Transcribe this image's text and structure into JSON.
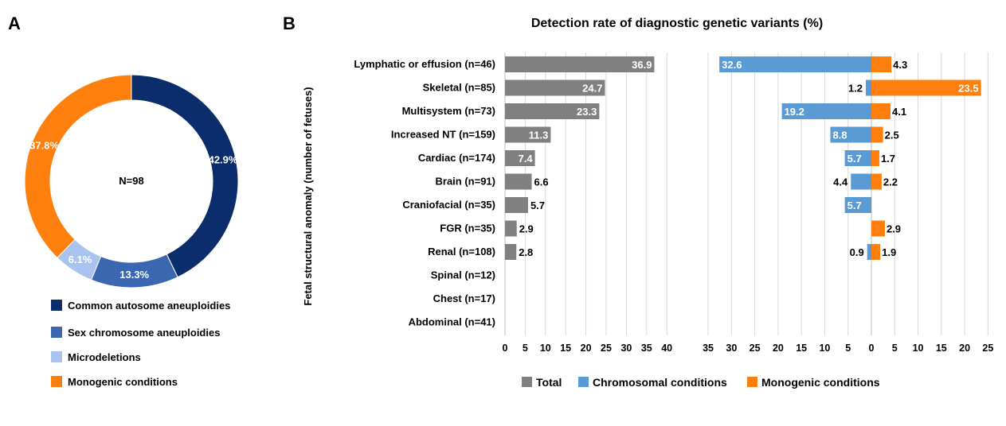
{
  "panels": {
    "a_label": "A",
    "b_label": "B"
  },
  "colors": {
    "common_autosome": "#0b2d6b",
    "sex_chromosome": "#3a67b0",
    "microdeletions": "#a9c2ef",
    "monogenic": "#ff7f0e",
    "total": "#808080",
    "chromosomal": "#5b9bd5",
    "monogenic_b": "#ff7f0e",
    "grid": "#d9d9d9"
  },
  "chart_data": [
    {
      "type": "pie",
      "center_label": "N=98",
      "slices": [
        {
          "name": "Common autosome aneuploidies",
          "value": 42.9,
          "label": "42.9%"
        },
        {
          "name": "Sex chromosome aneuploidies",
          "value": 13.3,
          "label": "13.3%"
        },
        {
          "name": "Microdeletions",
          "value": 6.1,
          "label": "6.1%"
        },
        {
          "name": "Monogenic conditions",
          "value": 37.8,
          "label": "37.8%"
        }
      ],
      "legend": [
        "Common autosome aneuploidies",
        "Sex chromosome aneuploidies",
        "Microdeletions",
        "Monogenic conditions"
      ]
    },
    {
      "type": "bar",
      "title": "Detection rate of diagnostic genetic variants (%)",
      "ylabel": "Fetal structural anomaly (number of fetuses)",
      "categories": [
        "Lymphatic or effusion (n=46)",
        "Skeletal (n=85)",
        "Multisystem (n=73)",
        "Increased NT (n=159)",
        "Cardiac (n=174)",
        "Brain (n=91)",
        "Craniofacial (n=35)",
        "FGR (n=35)",
        "Renal (n=108)",
        "Spinal (n=12)",
        "Chest (n=17)",
        "Abdominal (n=41)"
      ],
      "series": [
        {
          "name": "Total",
          "values": [
            36.9,
            24.7,
            23.3,
            11.3,
            7.4,
            6.6,
            5.7,
            2.9,
            2.8,
            null,
            null,
            null
          ]
        },
        {
          "name": "Chromosomal conditions",
          "values": [
            32.6,
            1.2,
            19.2,
            8.8,
            5.7,
            4.4,
            5.7,
            null,
            0.9,
            null,
            null,
            null
          ]
        },
        {
          "name": "Monogenic conditions",
          "values": [
            4.3,
            23.5,
            4.1,
            2.5,
            1.7,
            2.2,
            null,
            2.9,
            1.9,
            null,
            null,
            null
          ]
        }
      ],
      "total_axis": {
        "xlim": [
          0,
          40
        ],
        "ticks": [
          "0",
          "5",
          "10",
          "15",
          "20",
          "25",
          "30",
          "35",
          "40"
        ]
      },
      "split_axis": {
        "left_xlim": [
          35,
          0
        ],
        "left_ticks": [
          "35",
          "30",
          "25",
          "20",
          "15",
          "10",
          "5",
          "0"
        ],
        "right_xlim": [
          0,
          25
        ],
        "right_ticks": [
          "5",
          "10",
          "15",
          "20",
          "25"
        ]
      },
      "legend": [
        "Total",
        "Chromosomal conditions",
        "Monogenic conditions"
      ],
      "grid": true
    }
  ]
}
